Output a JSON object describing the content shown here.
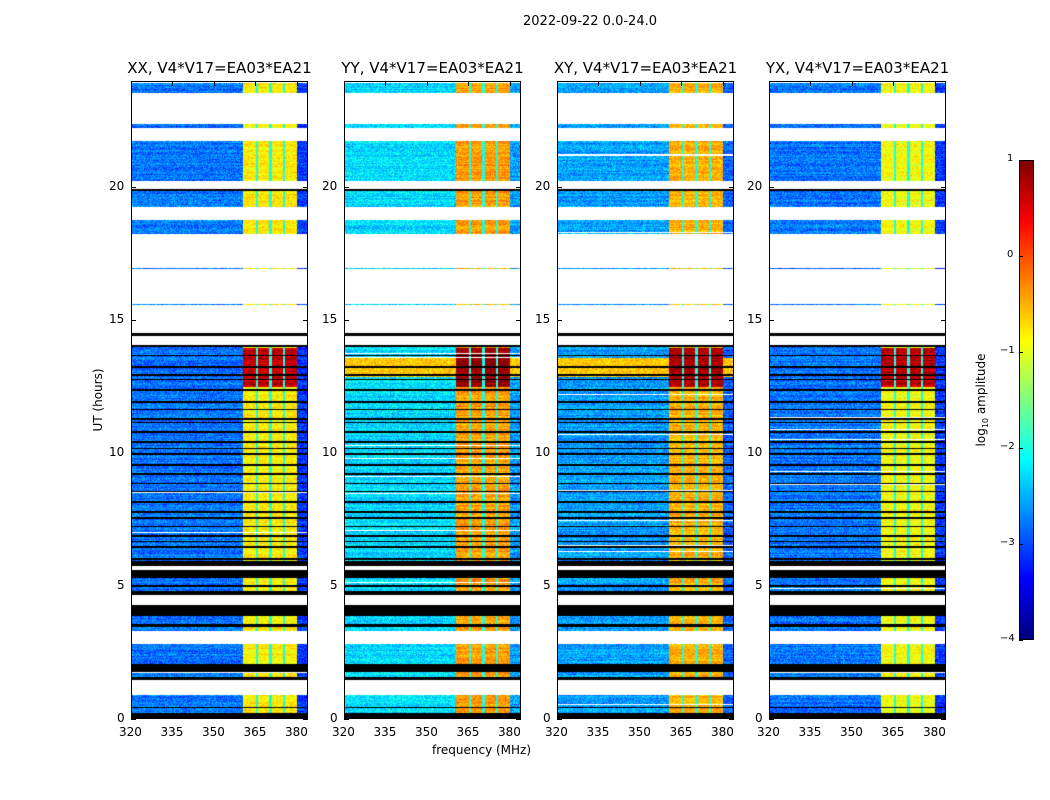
{
  "chart_data": {
    "type": "heatmap",
    "title": "2022-09-22 0.0-24.0",
    "xlabel": "frequency (MHz)",
    "ylabel": "UT (hours)",
    "xlim": [
      320,
      384
    ],
    "ylim": [
      0,
      24
    ],
    "xticks": [
      "320",
      "335",
      "350",
      "365",
      "380"
    ],
    "xtick_values": [
      320,
      335,
      350,
      365,
      380
    ],
    "yticks": [
      "0",
      "5",
      "10",
      "15",
      "20"
    ],
    "ytick_values": [
      0,
      5,
      10,
      15,
      20
    ],
    "colorbar": {
      "label": "log10 amplitude",
      "label_main": "log",
      "label_sub": "10",
      "label_rest": " amplitude",
      "range": [
        -4,
        1
      ],
      "ticks": [
        "−4",
        "−3",
        "−2",
        "−1",
        "0",
        "1"
      ],
      "tick_values": [
        -4,
        -3,
        -2,
        -1,
        0,
        1
      ],
      "colormap": "jet"
    },
    "rfi_band_mhz": [
      360.5,
      380
    ],
    "hot_interval_hours": [
      12.5,
      14.0
    ],
    "time_segments": [
      [
        0,
        0.2,
        "black"
      ],
      [
        0.2,
        0.4,
        "data"
      ],
      [
        0.4,
        0.45,
        "black"
      ],
      [
        0.45,
        0.9,
        "data"
      ],
      [
        0.9,
        1.45,
        "flagged"
      ],
      [
        1.45,
        1.55,
        "black"
      ],
      [
        1.55,
        1.75,
        "data"
      ],
      [
        1.75,
        2.05,
        "black"
      ],
      [
        2.05,
        2.8,
        "data"
      ],
      [
        2.8,
        3.3,
        "flagged"
      ],
      [
        3.3,
        3.45,
        "data"
      ],
      [
        3.45,
        3.55,
        "black"
      ],
      [
        3.55,
        3.85,
        "data"
      ],
      [
        3.85,
        4.3,
        "black"
      ],
      [
        4.3,
        4.65,
        "flagged"
      ],
      [
        4.65,
        4.8,
        "black"
      ],
      [
        4.8,
        4.95,
        "data"
      ],
      [
        4.95,
        5.05,
        "black"
      ],
      [
        5.05,
        5.3,
        "data"
      ],
      [
        5.3,
        5.6,
        "black"
      ],
      [
        5.6,
        5.75,
        "flagged"
      ],
      [
        5.75,
        5.85,
        "black"
      ],
      [
        5.85,
        14.1,
        "data"
      ],
      [
        14.1,
        14.45,
        "flagged"
      ],
      [
        14.45,
        14.55,
        "black"
      ],
      [
        14.55,
        15.6,
        "flagged"
      ],
      [
        15.6,
        15.65,
        "data"
      ],
      [
        15.65,
        16.95,
        "flagged"
      ],
      [
        16.95,
        17.0,
        "data"
      ],
      [
        17.0,
        18.3,
        "flagged"
      ],
      [
        18.3,
        18.8,
        "data"
      ],
      [
        18.8,
        19.3,
        "flagged"
      ],
      [
        19.3,
        19.9,
        "data"
      ],
      [
        19.9,
        20.0,
        "black"
      ],
      [
        20.0,
        20.3,
        "flagged"
      ],
      [
        20.3,
        21.8,
        "data"
      ],
      [
        21.8,
        22.3,
        "flagged"
      ],
      [
        22.3,
        22.45,
        "data"
      ],
      [
        22.45,
        23.6,
        "flagged"
      ],
      [
        23.6,
        24,
        "data"
      ]
    ],
    "series": [
      {
        "name": "XX, V4*V17=EA03*EA21",
        "background_level": -2.8,
        "band_level": -0.8,
        "hot_level": 0.7
      },
      {
        "name": "YY, V4*V17=EA03*EA21",
        "background_level": -2.3,
        "band_level": -0.4,
        "hot_level": 0.9
      },
      {
        "name": "XY, V4*V17=EA03*EA21",
        "background_level": -2.6,
        "band_level": -0.5,
        "hot_level": 0.8
      },
      {
        "name": "YX, V4*V17=EA03*EA21",
        "background_level": -2.8,
        "band_level": -0.9,
        "hot_level": 0.7
      }
    ]
  }
}
